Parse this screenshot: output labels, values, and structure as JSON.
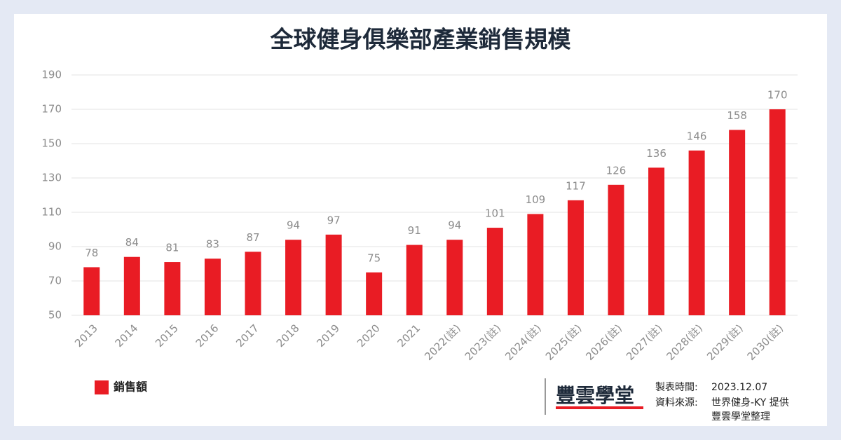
{
  "chart_data": {
    "type": "bar",
    "title": "全球健身俱樂部產業銷售規模",
    "categories": [
      "2013",
      "2014",
      "2015",
      "2016",
      "2017",
      "2018",
      "2019",
      "2020",
      "2021",
      "2022(註)",
      "2023(註)",
      "2024(註)",
      "2025(註)",
      "2026(註)",
      "2027(註)",
      "2028(註)",
      "2029(註)",
      "2030(註)"
    ],
    "series": [
      {
        "name": "銷售額",
        "color": "#e91c24",
        "values": [
          78,
          84,
          81,
          83,
          87,
          94,
          97,
          75,
          91,
          94,
          101,
          109,
          117,
          126,
          136,
          146,
          158,
          170
        ]
      }
    ],
    "ylim": [
      50,
      190
    ],
    "yticks": [
      50,
      70,
      90,
      110,
      130,
      150,
      170,
      190
    ],
    "grid": true
  },
  "footer": {
    "logo": "豐雲學堂",
    "date_label": "製表時間:",
    "date": "2023.12.07",
    "source_label": "資料來源:",
    "source": "世界健身-KY 提供",
    "compiler": "豐雲學堂整理"
  }
}
